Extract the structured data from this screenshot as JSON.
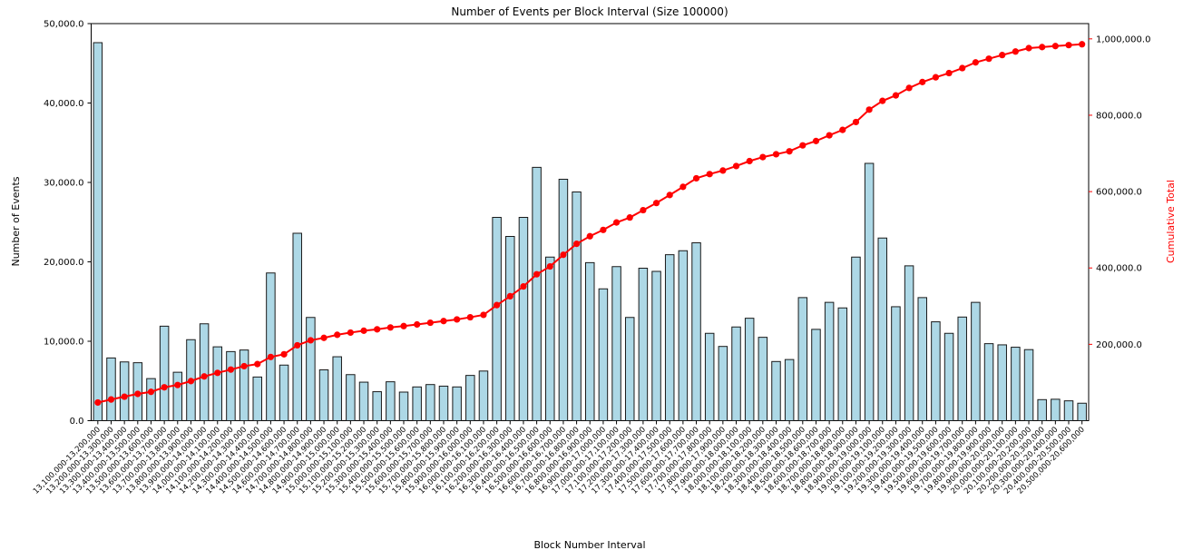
{
  "chart_data": {
    "type": "bar",
    "title": "Number of Events per Block Interval (Size 100000)",
    "xlabel": "Block Number Interval",
    "ylabel_left": "Number of Events",
    "ylabel_right": "Cumulative Total",
    "grid": false,
    "legend_position": "none",
    "bar_color": "#ADD8E6",
    "bar_edge_color": "#1a1a1a",
    "line_color": "#ff0000",
    "left_axis": {
      "min": 0,
      "max": 50000,
      "tick_values": [
        0,
        10000,
        20000,
        30000,
        40000,
        50000
      ],
      "tick_labels": [
        "0.0",
        "10,000.0",
        "20,000.0",
        "30,000.0",
        "40,000.0",
        "50,000.0"
      ]
    },
    "right_axis": {
      "min": 0,
      "max": 1040000,
      "tick_values": [
        200000,
        400000,
        600000,
        800000,
        1000000
      ],
      "tick_labels": [
        "200,000.0",
        "400,000.0",
        "600,000.0",
        "800,000.0",
        "1,000,000.0"
      ]
    },
    "categories": [
      "13,100,000-13,200,000",
      "13,200,000-13,300,000",
      "13,300,000-13,400,000",
      "13,400,000-13,500,000",
      "13,500,000-13,600,000",
      "13,600,000-13,700,000",
      "13,700,000-13,800,000",
      "13,800,000-13,900,000",
      "13,900,000-14,000,000",
      "14,000,000-14,100,000",
      "14,100,000-14,200,000",
      "14,200,000-14,300,000",
      "14,300,000-14,400,000",
      "14,400,000-14,500,000",
      "14,500,000-14,600,000",
      "14,600,000-14,700,000",
      "14,700,000-14,800,000",
      "14,800,000-14,900,000",
      "14,900,000-15,000,000",
      "15,000,000-15,100,000",
      "15,100,000-15,200,000",
      "15,200,000-15,300,000",
      "15,300,000-15,400,000",
      "15,400,000-15,500,000",
      "15,500,000-15,600,000",
      "15,600,000-15,700,000",
      "15,700,000-15,800,000",
      "15,800,000-15,900,000",
      "15,900,000-16,000,000",
      "16,000,000-16,100,000",
      "16,100,000-16,200,000",
      "16,200,000-16,300,000",
      "16,300,000-16,400,000",
      "16,400,000-16,500,000",
      "16,500,000-16,600,000",
      "16,600,000-16,700,000",
      "16,700,000-16,800,000",
      "16,800,000-16,900,000",
      "16,900,000-17,000,000",
      "17,000,000-17,100,000",
      "17,100,000-17,200,000",
      "17,200,000-17,300,000",
      "17,300,000-17,400,000",
      "17,400,000-17,500,000",
      "17,500,000-17,600,000",
      "17,600,000-17,700,000",
      "17,700,000-17,800,000",
      "17,800,000-17,900,000",
      "17,900,000-18,000,000",
      "18,000,000-18,100,000",
      "18,100,000-18,200,000",
      "18,200,000-18,300,000",
      "18,300,000-18,400,000",
      "18,400,000-18,500,000",
      "18,500,000-18,600,000",
      "18,600,000-18,700,000",
      "18,700,000-18,800,000",
      "18,800,000-18,900,000",
      "18,900,000-19,000,000",
      "19,000,000-19,100,000",
      "19,100,000-19,200,000",
      "19,200,000-19,300,000",
      "19,300,000-19,400,000",
      "19,400,000-19,500,000",
      "19,500,000-19,600,000",
      "19,600,000-19,700,000",
      "19,700,000-19,800,000",
      "19,800,000-19,900,000",
      "19,900,000-20,000,000",
      "20,000,000-20,100,000",
      "20,100,000-20,200,000",
      "20,200,000-20,300,000",
      "20,300,000-20,400,000",
      "20,400,000-20,500,000",
      "20,500,000-20,600,000"
    ],
    "series": [
      {
        "name": "Number of Events",
        "render": "bar",
        "values": [
          47600,
          7900,
          7400,
          7300,
          5300,
          11900,
          6100,
          10200,
          12200,
          9300,
          8700,
          8900,
          5500,
          18600,
          7000,
          23600,
          13000,
          6400,
          8050,
          5800,
          4850,
          3650,
          4900,
          3600,
          4250,
          4550,
          4350,
          4250,
          5700,
          6250,
          25600,
          23200,
          25600,
          31900,
          20600,
          30400,
          28800,
          19900,
          16600,
          19400,
          13000,
          19200,
          18800,
          20900,
          21400,
          22400,
          11000,
          9350,
          11800,
          12900,
          10500,
          7450,
          7700,
          15500,
          11500,
          14900,
          14200,
          20600,
          32400,
          23000,
          14350,
          19500,
          15500,
          12450,
          11000,
          13050,
          14900,
          9700,
          9550,
          9250,
          8950,
          2650,
          2700,
          2500,
          2200
        ]
      },
      {
        "name": "Cumulative Total",
        "render": "line",
        "values": [
          47600,
          55500,
          62900,
          70200,
          75500,
          87400,
          93500,
          103700,
          115900,
          125200,
          133900,
          142800,
          148300,
          166900,
          173900,
          197500,
          210500,
          216900,
          224950,
          230750,
          235600,
          239250,
          244150,
          247750,
          252000,
          256550,
          260900,
          265150,
          270850,
          277100,
          302700,
          325900,
          351500,
          383400,
          404000,
          434400,
          463200,
          483100,
          499700,
          519100,
          532100,
          551300,
          570100,
          591000,
          612400,
          634800,
          645800,
          655150,
          666950,
          679850,
          690350,
          697800,
          705500,
          721000,
          732500,
          747400,
          761600,
          782200,
          814600,
          837600,
          851950,
          871450,
          886950,
          899400,
          910400,
          923450,
          938350,
          948050,
          957600,
          966850,
          975800,
          978450,
          981150,
          983650,
          985850
        ]
      }
    ]
  }
}
